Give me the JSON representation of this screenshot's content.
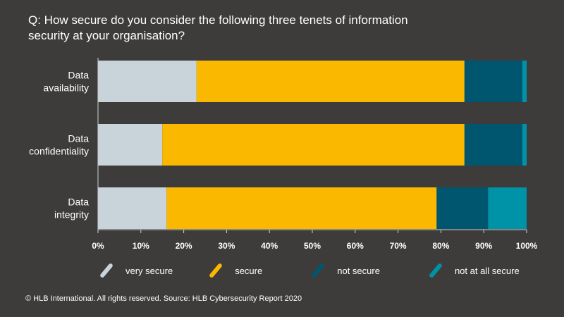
{
  "chart_data": {
    "type": "bar",
    "orientation": "horizontal",
    "stacked": true,
    "title": "Q: How secure do you consider the following three tenets of information\nsecurity at your organisation?",
    "categories": [
      "Data\navailability",
      "Data\nconfidentiality",
      "Data\nintegrity"
    ],
    "series": [
      {
        "name": "very secure",
        "color": "#c8d3da",
        "values": [
          23,
          15,
          16
        ]
      },
      {
        "name": "secure",
        "color": "#fab800",
        "values": [
          62.5,
          70.5,
          63
        ]
      },
      {
        "name": "not secure",
        "color": "#00566f",
        "values": [
          13.5,
          13.5,
          12
        ]
      },
      {
        "name": "not at all secure",
        "color": "#0092a6",
        "values": [
          1,
          1,
          9
        ]
      }
    ],
    "xlim": [
      0,
      100
    ],
    "xticks": [
      "0%",
      "10%",
      "20%",
      "30%",
      "40%",
      "50%",
      "60%",
      "70%",
      "80%",
      "90%",
      "100%"
    ],
    "xlabel": "",
    "ylabel": "",
    "grid": false,
    "legend_position": "bottom"
  },
  "footer": "© HLB International. All rights reserved. Source: HLB Cybersecurity Report 2020",
  "colors": {
    "background": "#3d3c3a",
    "text": "#ffffff",
    "axis": "#cfcfcf"
  }
}
